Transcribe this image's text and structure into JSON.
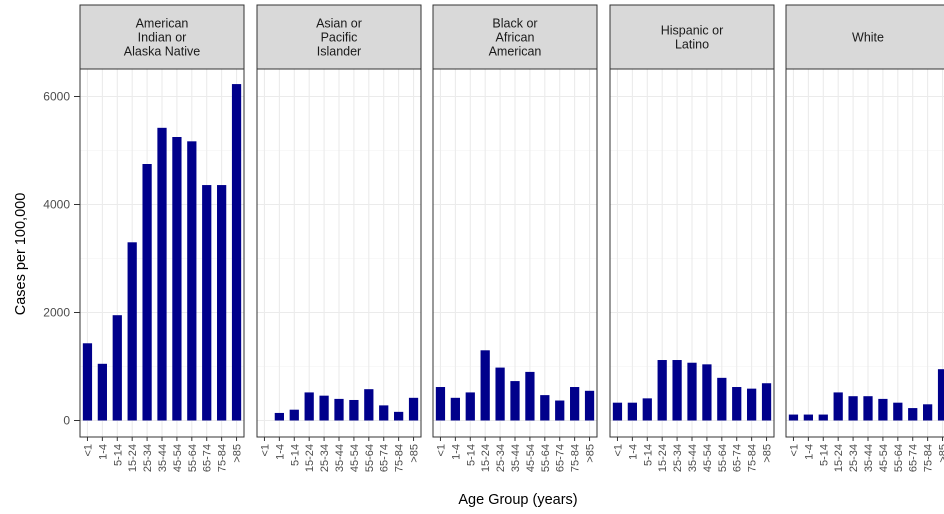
{
  "chart_data": {
    "type": "bar",
    "facet_by": "race",
    "xlabel": "Age Group (years)",
    "ylabel": "Cases per 100,000",
    "ylim": [
      0,
      6500
    ],
    "yticks": [
      0,
      2000,
      4000,
      6000
    ],
    "ytick_labels": [
      "0",
      "2000",
      "4000",
      "6000"
    ],
    "categories": [
      "<1",
      "1-4",
      "5-14",
      "15-24",
      "25-34",
      "35-44",
      "45-54",
      "55-64",
      "65-74",
      "75-84",
      ">85"
    ],
    "bar_color": "#00008B",
    "grid": true,
    "series": [
      {
        "name": "American Indian or Alaska Native",
        "strip_lines": [
          "American",
          "Indian or",
          "Alaska Native"
        ],
        "values": [
          1430,
          1050,
          1950,
          3300,
          4750,
          5420,
          5250,
          5170,
          4360,
          4360,
          6230
        ]
      },
      {
        "name": "Asian or Pacific Islander",
        "strip_lines": [
          "Asian or",
          "Pacific",
          "Islander"
        ],
        "values": [
          0,
          140,
          200,
          520,
          460,
          400,
          380,
          580,
          280,
          160,
          420
        ]
      },
      {
        "name": "Black or African American",
        "strip_lines": [
          "Black or",
          "African",
          "American"
        ],
        "values": [
          620,
          420,
          520,
          1300,
          980,
          730,
          900,
          470,
          370,
          620,
          550
        ]
      },
      {
        "name": "Hispanic or Latino",
        "strip_lines": [
          "Hispanic or",
          "Latino"
        ],
        "values": [
          330,
          330,
          410,
          1120,
          1120,
          1070,
          1040,
          790,
          620,
          590,
          690
        ]
      },
      {
        "name": "White",
        "strip_lines": [
          "White"
        ],
        "values": [
          110,
          110,
          110,
          520,
          450,
          450,
          400,
          330,
          230,
          300,
          950
        ]
      }
    ]
  }
}
